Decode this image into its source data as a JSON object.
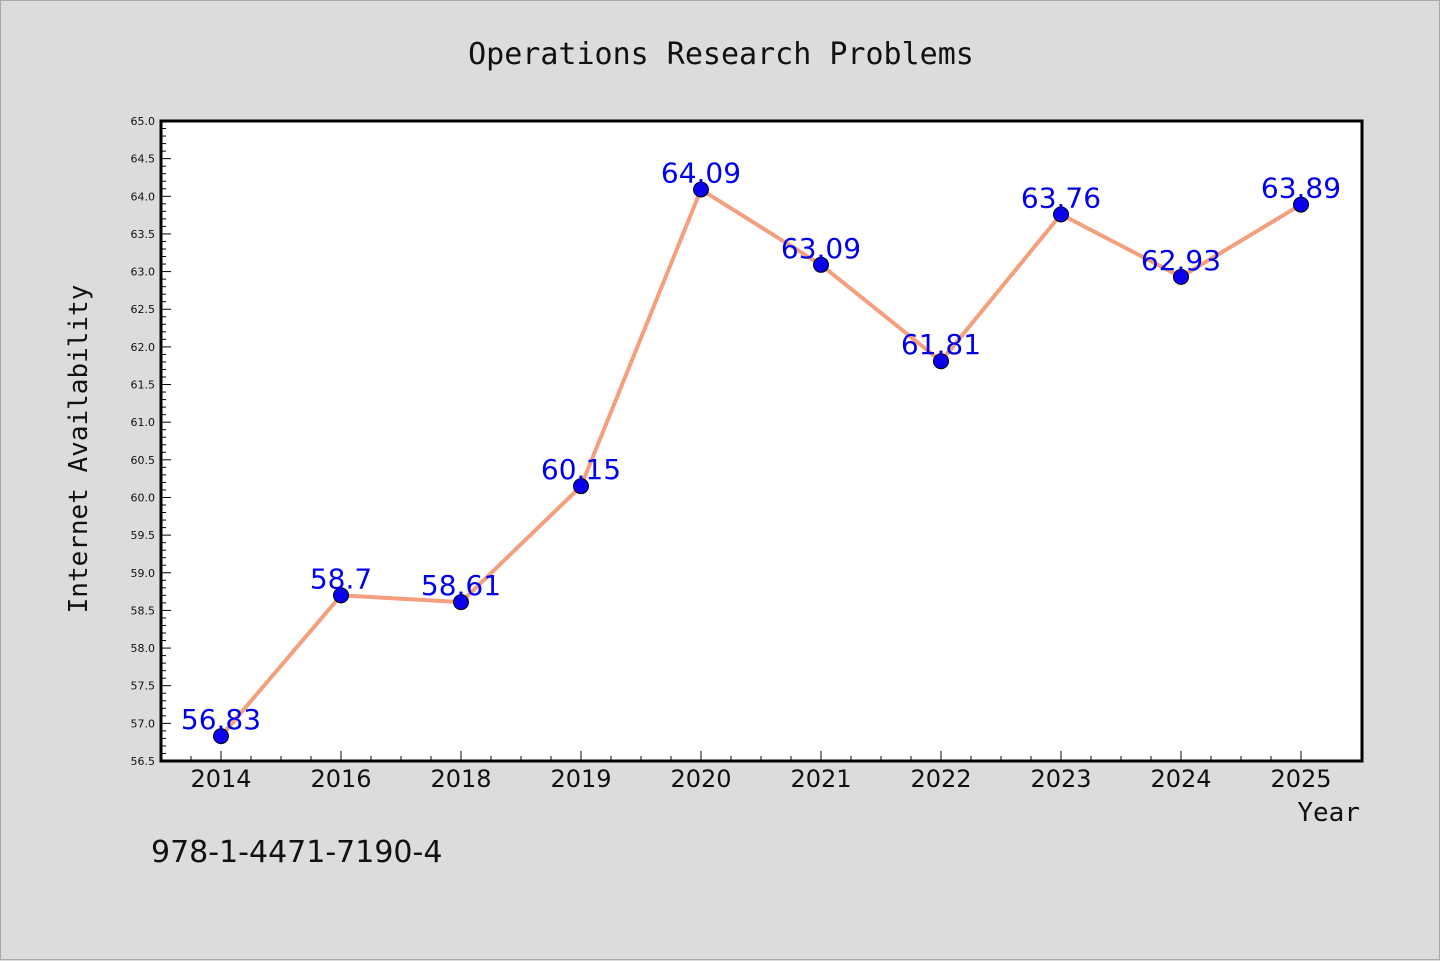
{
  "chart_data": {
    "type": "line",
    "title": "Operations Research Problems",
    "xlabel": "Year",
    "ylabel": "Internet Availability",
    "categories": [
      "2014",
      "2016",
      "2018",
      "2019",
      "2020",
      "2021",
      "2022",
      "2023",
      "2024",
      "2025"
    ],
    "series": [
      {
        "values": [
          56.83,
          58.7,
          58.61,
          60.15,
          64.09,
          63.09,
          61.81,
          63.76,
          62.93,
          63.89
        ],
        "data_labels": [
          "56.83",
          "58.7",
          "58.61",
          "60.15",
          "64.09",
          "63.09",
          "61.81",
          "63.76",
          "62.93",
          "63.89"
        ],
        "line_color": "#f4a07e",
        "marker_color": "#0a00ee"
      }
    ],
    "ylim": [
      56.5,
      65.0
    ],
    "yticks": [
      "56.5",
      "57.0",
      "57.5",
      "58.0",
      "58.5",
      "59.0",
      "59.5",
      "60.0",
      "60.5",
      "61.0",
      "61.5",
      "62.0",
      "62.5",
      "63.0",
      "63.5",
      "64.0",
      "64.5",
      "65.0"
    ],
    "grid": false,
    "legend": "none",
    "colors": {
      "background": "#dcdcdc",
      "plot_background": "#ffffff",
      "label_color": "#0000ee",
      "text_color": "#111111"
    }
  },
  "footer": {
    "code": "978-1-4471-7190-4"
  }
}
